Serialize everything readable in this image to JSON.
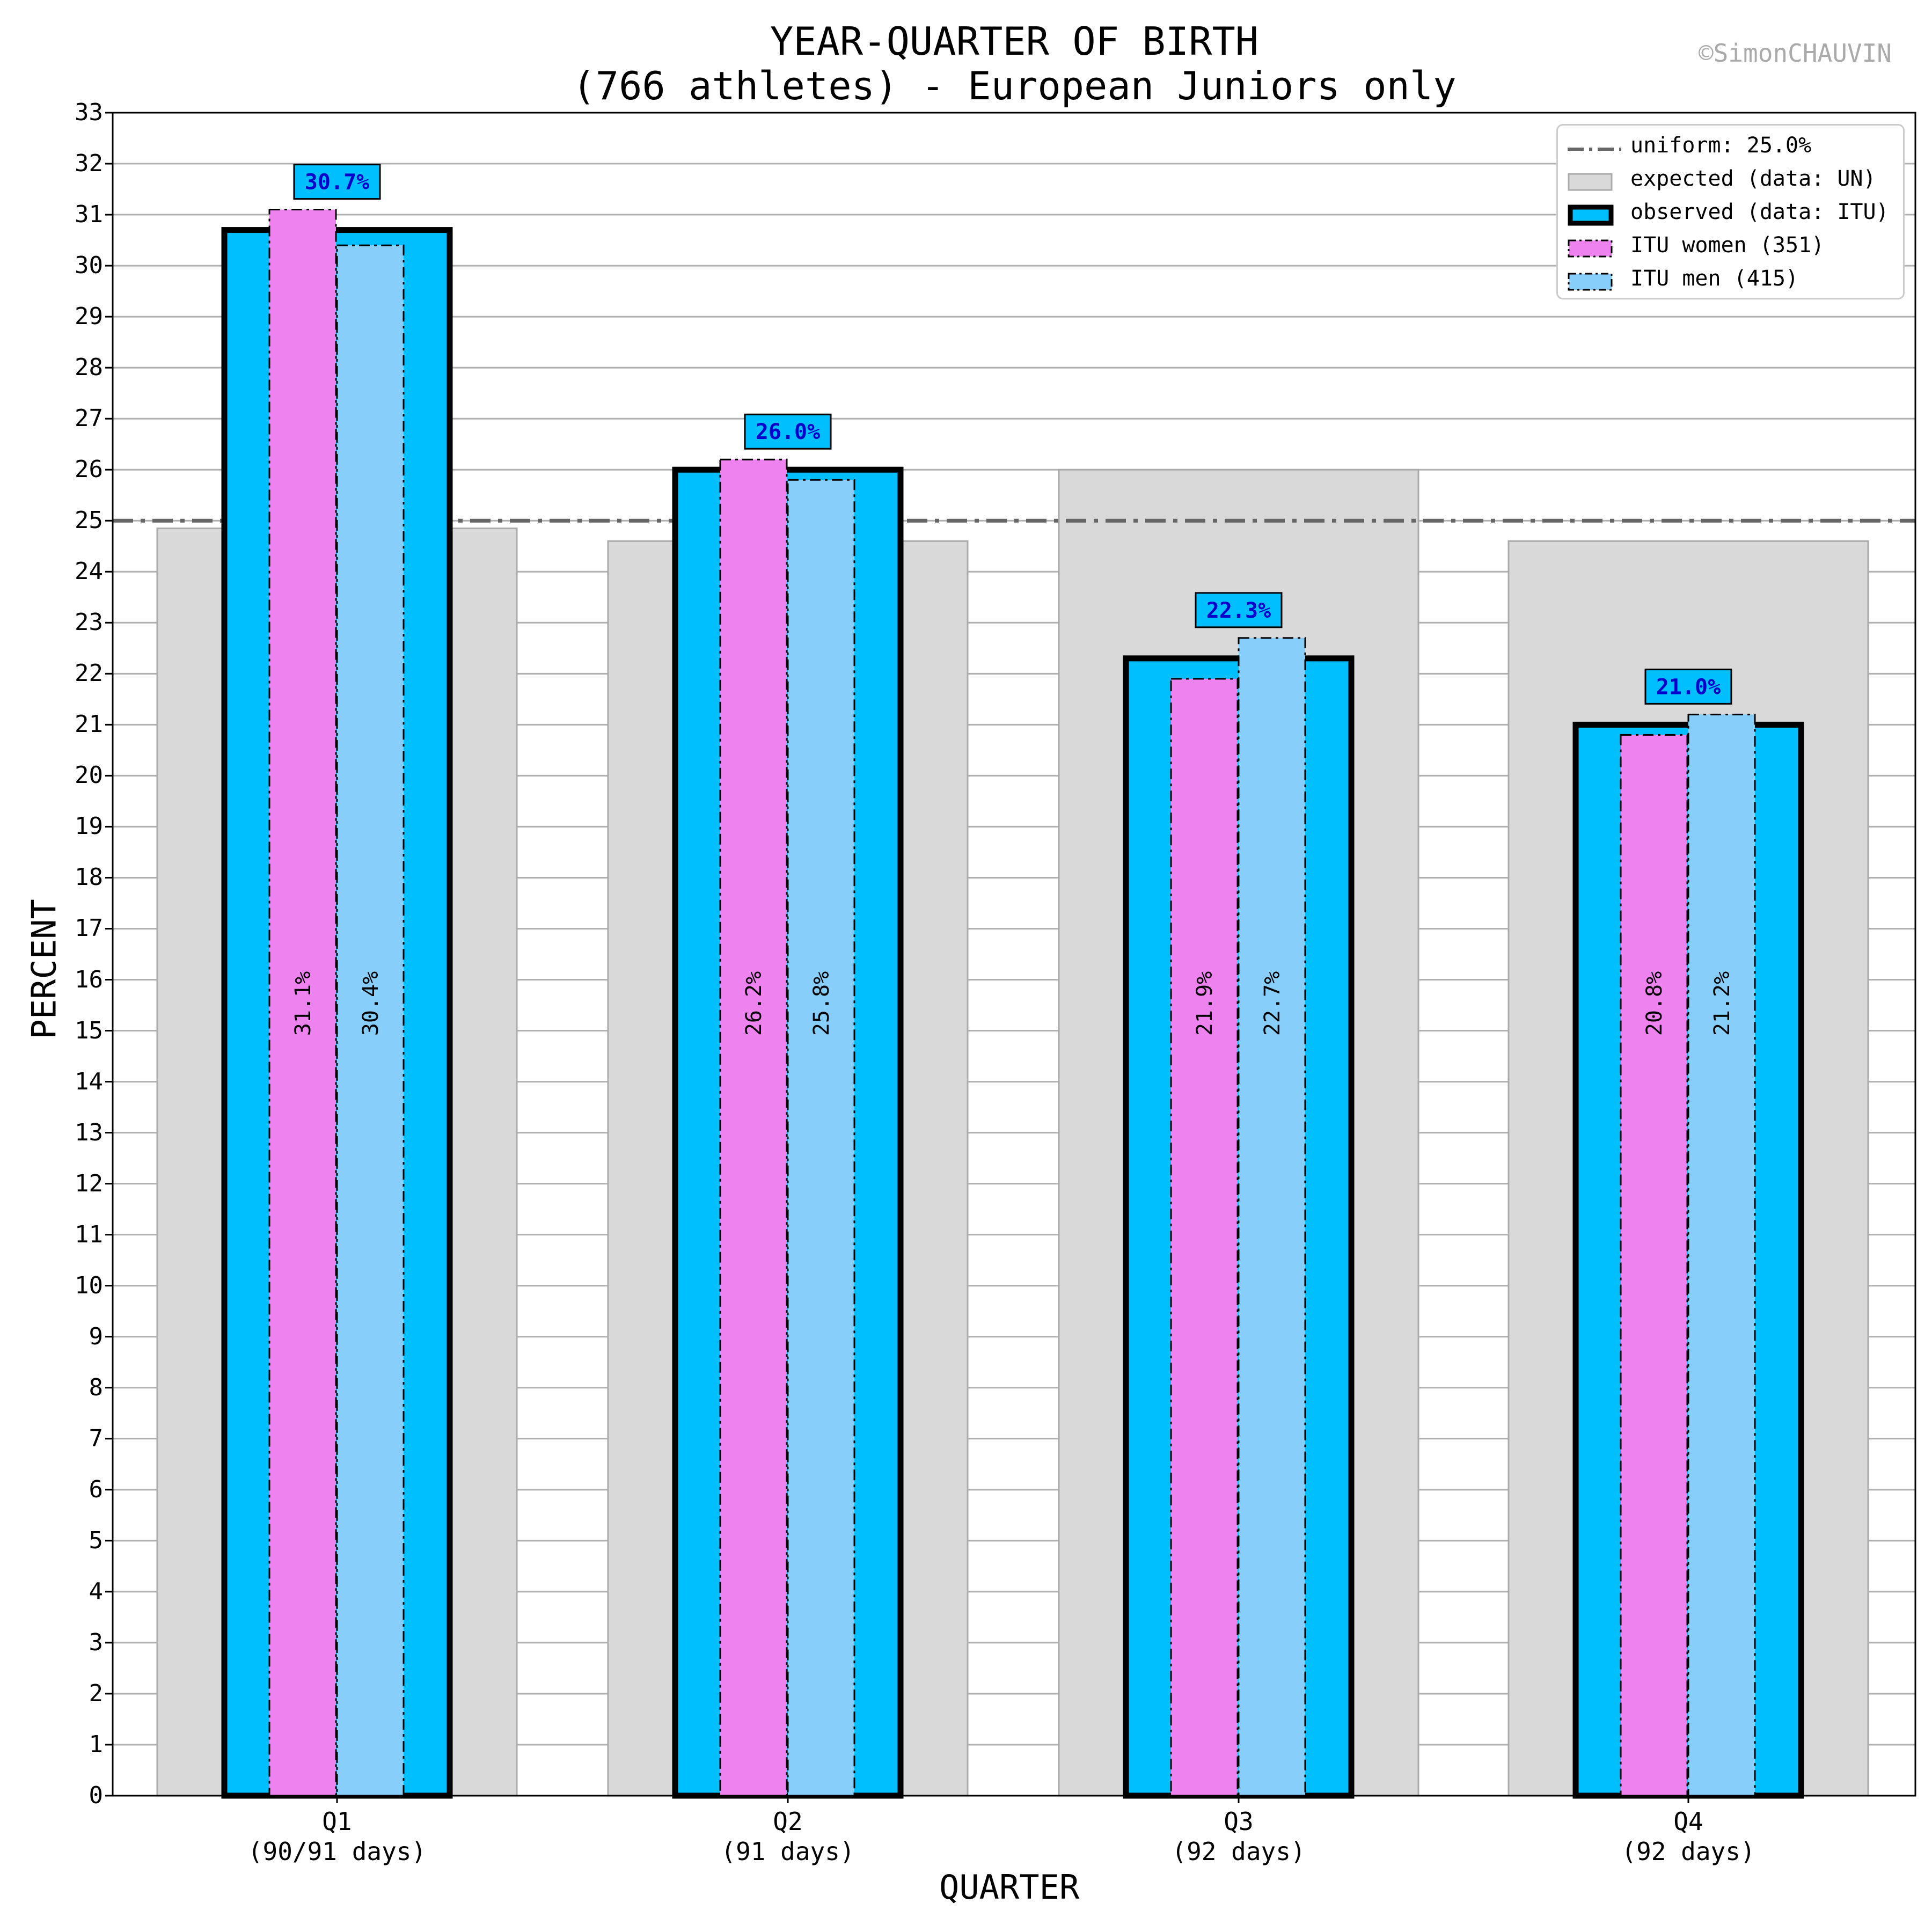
{
  "title_line1": "YEAR-QUARTER OF BIRTH",
  "title_line2": "(766 athletes) - European Juniors only",
  "watermark": "©SimonCHAUVIN",
  "legend": {
    "uniform": "uniform: 25.0%",
    "expected": "expected (data: UN)",
    "observed": "observed (data: ITU)",
    "women": "ITU women (351)",
    "men": "ITU men (415)"
  },
  "colors": {
    "expected": "#d9d9d9",
    "observed": "#00bfff",
    "women": "#ee82ee",
    "men": "#87cefa",
    "uniform_line": "#666666",
    "annotation_text": "#0000cd"
  },
  "chart_data": {
    "type": "bar",
    "title": "YEAR-QUARTER OF BIRTH\n(766 athletes) - European Juniors only",
    "xlabel": "QUARTER",
    "ylabel": "PERCENT",
    "ylim": [
      0,
      33
    ],
    "yticks": [
      0,
      1,
      2,
      3,
      4,
      5,
      6,
      7,
      8,
      9,
      10,
      11,
      12,
      13,
      14,
      15,
      16,
      17,
      18,
      19,
      20,
      21,
      22,
      23,
      24,
      25,
      26,
      27,
      28,
      29,
      30,
      31,
      32,
      33
    ],
    "grid": true,
    "legend_position": "top-right",
    "categories": [
      "Q1",
      "Q2",
      "Q3",
      "Q4"
    ],
    "category_sublabels": [
      "(90/91 days)",
      "(91 days)",
      "(92 days)",
      "(92 days)"
    ],
    "uniform_value": 25.0,
    "series": [
      {
        "name": "expected (data: UN)",
        "values": [
          24.85,
          24.6,
          26.0,
          24.6
        ]
      },
      {
        "name": "observed (data: ITU)",
        "values": [
          30.7,
          26.0,
          22.3,
          21.0
        ],
        "labels": [
          "30.7%",
          "26.0%",
          "22.3%",
          "21.0%"
        ]
      },
      {
        "name": "ITU women (351)",
        "values": [
          31.1,
          26.2,
          21.9,
          20.8
        ],
        "labels": [
          "31.1%",
          "26.2%",
          "21.9%",
          "20.8%"
        ]
      },
      {
        "name": "ITU men (415)",
        "values": [
          30.4,
          25.8,
          22.7,
          21.2
        ],
        "labels": [
          "30.4%",
          "25.8%",
          "22.7%",
          "21.2%"
        ]
      }
    ]
  }
}
